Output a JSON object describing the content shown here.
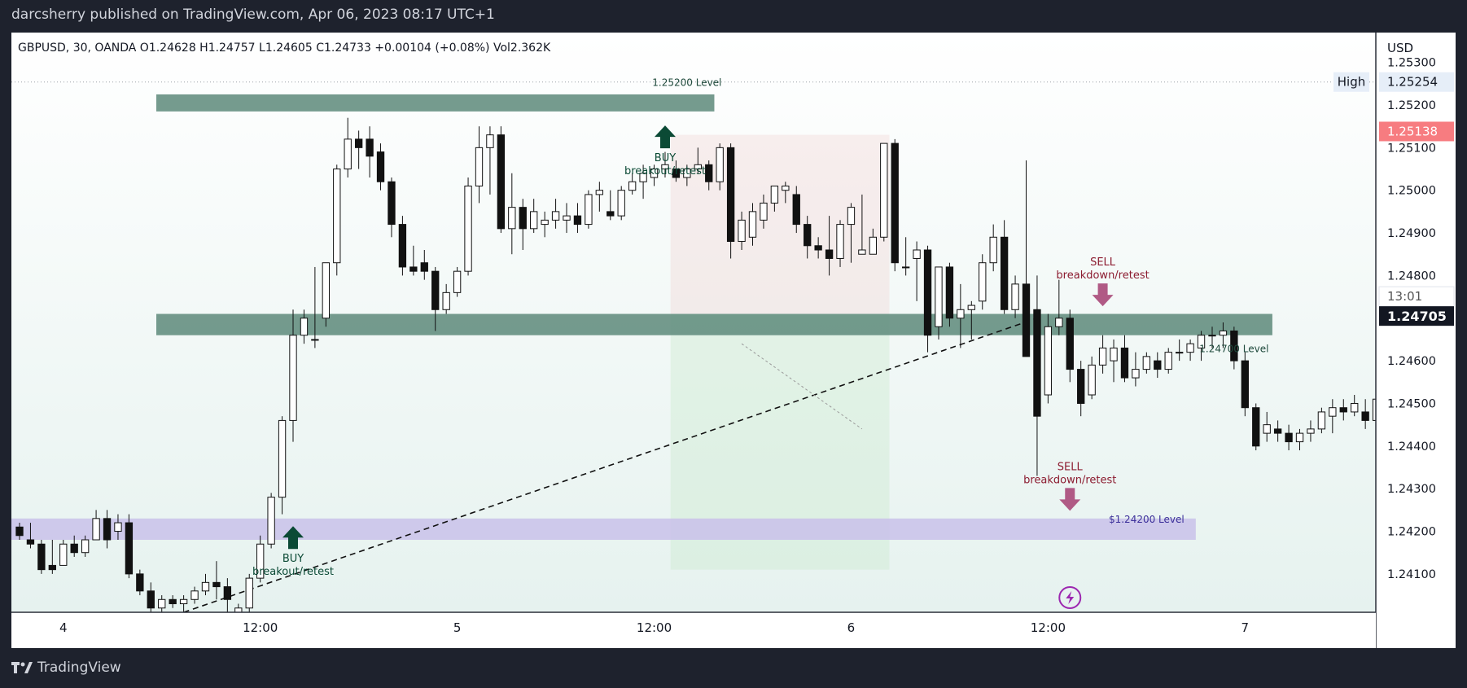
{
  "header": {
    "publish_line": "darcsherry published on TradingView.com, Apr 06, 2023 08:17 UTC+1"
  },
  "legend": {
    "symbol": "GBPUSD, 30, OANDA",
    "open": "O1.24628",
    "high": "H1.24757",
    "low": "L1.24605",
    "close": "C1.24733",
    "change": "+0.00104 (+0.08%)",
    "volume": "Vol2.362K"
  },
  "footer": {
    "brand": "TradingView"
  },
  "chart_data": {
    "type": "candlestick",
    "symbol": "GBPUSD",
    "interval": "30",
    "currency": "USD",
    "ylim": [
      1.2401,
      1.2537
    ],
    "y_ticks": [
      "1.25300",
      "1.25200",
      "1.25100",
      "1.25000",
      "1.24900",
      "1.24800",
      "1.24600",
      "1.24500",
      "1.24400",
      "1.24300",
      "1.24200",
      "1.24100"
    ],
    "x_ticks": [
      {
        "label": "4",
        "slot": 4
      },
      {
        "label": "12:00",
        "slot": 22
      },
      {
        "label": "5",
        "slot": 40
      },
      {
        "label": "12:00",
        "slot": 58
      },
      {
        "label": "6",
        "slot": 76
      },
      {
        "label": "12:00",
        "slot": 94
      },
      {
        "label": "7",
        "slot": 112
      }
    ],
    "total_slots": 129,
    "price_labels": [
      {
        "label": "High",
        "value": "1.25254",
        "price": 1.25254,
        "style": "high"
      },
      {
        "label": "",
        "value": "1.25138",
        "price": 1.25138,
        "style": "red"
      },
      {
        "label": "13:01",
        "value": "1.24705",
        "price": 1.24705,
        "style": "last"
      }
    ],
    "candles": [
      [
        1.2421,
        1.2422,
        1.2419,
        1.2418
      ],
      [
        1.2418,
        1.2422,
        1.2417,
        1.2416
      ],
      [
        1.2417,
        1.2418,
        1.2411,
        1.241
      ],
      [
        1.2412,
        1.2418,
        1.2411,
        1.241
      ],
      [
        1.2412,
        1.2418,
        1.2417,
        1.2416
      ],
      [
        1.2417,
        1.2419,
        1.2415,
        1.2414
      ],
      [
        1.2415,
        1.2419,
        1.2418,
        1.2414
      ],
      [
        1.2418,
        1.2425,
        1.2423,
        1.2418
      ],
      [
        1.2423,
        1.2425,
        1.2418,
        1.2416
      ],
      [
        1.242,
        1.2424,
        1.2422,
        1.2418
      ],
      [
        1.2422,
        1.2424,
        1.241,
        1.2409
      ],
      [
        1.241,
        1.2411,
        1.2406,
        1.2405
      ],
      [
        1.2406,
        1.2408,
        1.2402,
        1.2401
      ],
      [
        1.2402,
        1.2405,
        1.2404,
        1.2401
      ],
      [
        1.2404,
        1.2405,
        1.2403,
        1.2402
      ],
      [
        1.2403,
        1.2405,
        1.2404,
        1.2401
      ],
      [
        1.2404,
        1.2407,
        1.2406,
        1.2403
      ],
      [
        1.2406,
        1.241,
        1.2408,
        1.2405
      ],
      [
        1.2408,
        1.2413,
        1.2407,
        1.2404
      ],
      [
        1.2407,
        1.2409,
        1.2404,
        1.2401
      ],
      [
        1.2401,
        1.2403,
        1.2402,
        1.24
      ],
      [
        1.2402,
        1.241,
        1.2409,
        1.2401
      ],
      [
        1.2409,
        1.2419,
        1.2417,
        1.2408
      ],
      [
        1.2417,
        1.2429,
        1.2428,
        1.2416
      ],
      [
        1.2428,
        1.2447,
        1.2446,
        1.2424
      ],
      [
        1.2446,
        1.2472,
        1.2466,
        1.2441
      ],
      [
        1.2466,
        1.2472,
        1.247,
        1.2464
      ],
      [
        1.2465,
        1.2482,
        1.2465,
        1.2463
      ],
      [
        1.247,
        1.2483,
        1.2483,
        1.2468
      ],
      [
        1.2483,
        1.2506,
        1.2505,
        1.248
      ],
      [
        1.2505,
        1.2517,
        1.2512,
        1.2503
      ],
      [
        1.2512,
        1.2514,
        1.251,
        1.2505
      ],
      [
        1.2512,
        1.2515,
        1.2508,
        1.2503
      ],
      [
        1.2509,
        1.2511,
        1.2502,
        1.25
      ],
      [
        1.2502,
        1.2503,
        1.2492,
        1.2489
      ],
      [
        1.2492,
        1.2494,
        1.2482,
        1.248
      ],
      [
        1.2482,
        1.2487,
        1.2481,
        1.248
      ],
      [
        1.2483,
        1.2486,
        1.2481,
        1.2479
      ],
      [
        1.2481,
        1.2482,
        1.2472,
        1.2467
      ],
      [
        1.2472,
        1.2478,
        1.2476,
        1.2471
      ],
      [
        1.2476,
        1.2482,
        1.2481,
        1.2475
      ],
      [
        1.2481,
        1.2503,
        1.2501,
        1.248
      ],
      [
        1.2501,
        1.2515,
        1.251,
        1.2497
      ],
      [
        1.251,
        1.2515,
        1.2513,
        1.2499
      ],
      [
        1.2513,
        1.2515,
        1.2491,
        1.249
      ],
      [
        1.2491,
        1.2504,
        1.2496,
        1.2485
      ],
      [
        1.2496,
        1.2498,
        1.2491,
        1.2486
      ],
      [
        1.2491,
        1.2498,
        1.2495,
        1.249
      ],
      [
        1.2492,
        1.2495,
        1.2493,
        1.2489
      ],
      [
        1.2493,
        1.2498,
        1.2495,
        1.2491
      ],
      [
        1.2493,
        1.2497,
        1.2494,
        1.249
      ],
      [
        1.2494,
        1.2497,
        1.2492,
        1.249
      ],
      [
        1.2492,
        1.25,
        1.2499,
        1.2491
      ],
      [
        1.2499,
        1.2502,
        1.25,
        1.2495
      ],
      [
        1.2495,
        1.25,
        1.2494,
        1.2493
      ],
      [
        1.2494,
        1.2501,
        1.25,
        1.2493
      ],
      [
        1.25,
        1.2504,
        1.2502,
        1.2499
      ],
      [
        1.2502,
        1.2506,
        1.2504,
        1.2498
      ],
      [
        1.2503,
        1.2506,
        1.2505,
        1.2501
      ],
      [
        1.2505,
        1.2509,
        1.2506,
        1.2503
      ],
      [
        1.2505,
        1.2507,
        1.2503,
        1.2502
      ],
      [
        1.2503,
        1.2506,
        1.2505,
        1.2501
      ],
      [
        1.2505,
        1.251,
        1.2506,
        1.2504
      ],
      [
        1.2506,
        1.2507,
        1.2502,
        1.25
      ],
      [
        1.2502,
        1.2511,
        1.251,
        1.25
      ],
      [
        1.251,
        1.2511,
        1.2488,
        1.2484
      ],
      [
        1.2488,
        1.2495,
        1.2493,
        1.2486
      ],
      [
        1.2489,
        1.2497,
        1.2495,
        1.2487
      ],
      [
        1.2493,
        1.2499,
        1.2497,
        1.2491
      ],
      [
        1.2497,
        1.25,
        1.2501,
        1.2495
      ],
      [
        1.25,
        1.2502,
        1.2501,
        1.2497
      ],
      [
        1.2499,
        1.2501,
        1.2492,
        1.249
      ],
      [
        1.2492,
        1.2494,
        1.2487,
        1.2484
      ],
      [
        1.2487,
        1.2489,
        1.2486,
        1.2484
      ],
      [
        1.2486,
        1.2494,
        1.2484,
        1.248
      ],
      [
        1.2484,
        1.2493,
        1.2492,
        1.2482
      ],
      [
        1.2492,
        1.2497,
        1.2496,
        1.2483
      ],
      [
        1.2485,
        1.2499,
        1.2486,
        1.2485
      ],
      [
        1.2485,
        1.2491,
        1.2489,
        1.2485
      ],
      [
        1.2489,
        1.251,
        1.2511,
        1.2488
      ],
      [
        1.2511,
        1.2512,
        1.2483,
        1.2481
      ],
      [
        1.2482,
        1.2489,
        1.2482,
        1.248
      ],
      [
        1.2484,
        1.2488,
        1.2486,
        1.2474
      ],
      [
        1.2486,
        1.2487,
        1.2466,
        1.2462
      ],
      [
        1.2468,
        1.2481,
        1.2482,
        1.2465
      ],
      [
        1.2482,
        1.2483,
        1.247,
        1.2468
      ],
      [
        1.247,
        1.2478,
        1.2472,
        1.2463
      ],
      [
        1.2472,
        1.2474,
        1.2473,
        1.2465
      ],
      [
        1.2474,
        1.2485,
        1.2483,
        1.2472
      ],
      [
        1.2483,
        1.2492,
        1.2489,
        1.2481
      ],
      [
        1.2489,
        1.2493,
        1.2472,
        1.2471
      ],
      [
        1.2472,
        1.248,
        1.2478,
        1.247
      ],
      [
        1.2478,
        1.2507,
        1.2461,
        1.2461
      ],
      [
        1.2472,
        1.248,
        1.2447,
        1.2433
      ],
      [
        1.2452,
        1.2471,
        1.2468,
        1.245
      ],
      [
        1.2468,
        1.2479,
        1.247,
        1.2466
      ],
      [
        1.247,
        1.2472,
        1.2458,
        1.2455
      ],
      [
        1.2458,
        1.246,
        1.245,
        1.2447
      ],
      [
        1.2452,
        1.2461,
        1.2459,
        1.2451
      ],
      [
        1.2459,
        1.2466,
        1.2463,
        1.2457
      ],
      [
        1.246,
        1.2465,
        1.2463,
        1.2455
      ],
      [
        1.2463,
        1.2466,
        1.2456,
        1.2455
      ],
      [
        1.2456,
        1.2462,
        1.2458,
        1.2454
      ],
      [
        1.2458,
        1.2462,
        1.2461,
        1.2457
      ],
      [
        1.246,
        1.2462,
        1.2458,
        1.2456
      ],
      [
        1.2458,
        1.2463,
        1.2462,
        1.2457
      ],
      [
        1.2462,
        1.2465,
        1.2462,
        1.246
      ],
      [
        1.2462,
        1.2465,
        1.2464,
        1.246
      ],
      [
        1.2463,
        1.2467,
        1.2466,
        1.246
      ],
      [
        1.2466,
        1.2468,
        1.2466,
        1.2463
      ],
      [
        1.2466,
        1.2469,
        1.2467,
        1.2463
      ],
      [
        1.2467,
        1.2468,
        1.246,
        1.2458
      ],
      [
        1.246,
        1.2462,
        1.2449,
        1.2447
      ],
      [
        1.2449,
        1.245,
        1.244,
        1.2439
      ],
      [
        1.2443,
        1.2448,
        1.2445,
        1.2441
      ],
      [
        1.2444,
        1.2446,
        1.2443,
        1.2441
      ],
      [
        1.2443,
        1.2445,
        1.2441,
        1.2439
      ],
      [
        1.2441,
        1.2444,
        1.2443,
        1.2439
      ],
      [
        1.2443,
        1.2446,
        1.2444,
        1.2441
      ],
      [
        1.2444,
        1.2449,
        1.2448,
        1.2443
      ],
      [
        1.2447,
        1.2451,
        1.2449,
        1.2443
      ],
      [
        1.2449,
        1.2451,
        1.2448,
        1.2446
      ],
      [
        1.2448,
        1.2452,
        1.245,
        1.2447
      ],
      [
        1.2448,
        1.2451,
        1.2446,
        1.2444
      ],
      [
        1.2446,
        1.2452,
        1.2451,
        1.2444
      ],
      [
        1.2451,
        1.2463,
        1.2462,
        1.245
      ],
      [
        1.2462,
        1.2476,
        1.2473,
        1.2461
      ]
    ],
    "zones": [
      {
        "name": "resistance-zone-125200",
        "p1": 1.25185,
        "p2": 1.25225,
        "slot_from": 13,
        "slot_to": 63,
        "color": "#5d8a7a"
      },
      {
        "name": "support-zone-124700",
        "p1": 1.2466,
        "p2": 1.2471,
        "slot_from": 13,
        "slot_to": 114,
        "color": "#5d8a7a"
      },
      {
        "name": "support-zone-124200",
        "p1": 1.2418,
        "p2": 1.2423,
        "slot_from": -1,
        "slot_to": 107,
        "color": "#c9c1ea"
      }
    ],
    "position_box": {
      "entry": 1.2471,
      "target": 1.2411,
      "stop": 1.2513,
      "slot_from": 60,
      "slot_to": 79
    },
    "trend_line": {
      "from": [
        15,
        1.2401
      ],
      "to": [
        93,
        1.247
      ]
    },
    "dashed_projection": {
      "from": [
        66,
        1.2464
      ],
      "to": [
        77,
        1.2444
      ]
    },
    "annotations": [
      {
        "name": "buy-label-top",
        "lines": [
          "BUY",
          "breakout/retest"
        ],
        "slot": 59,
        "price": 1.2511,
        "arrow": "up",
        "color": "#0b4a35"
      },
      {
        "name": "buy-label-bottom",
        "lines": [
          "BUY",
          "breakout/retest"
        ],
        "slot": 25,
        "price": 1.2417,
        "arrow": "up",
        "color": "#0b4a35"
      },
      {
        "name": "sell-label-top",
        "lines": [
          "SELL",
          "breakdown/retest"
        ],
        "slot": 99,
        "price": 1.2477,
        "arrow": "down",
        "color": "#8c1c30"
      },
      {
        "name": "sell-label-bottom",
        "lines": [
          "SELL",
          "breakdown/retest"
        ],
        "slot": 96,
        "price": 1.2429,
        "arrow": "down",
        "color": "#8c1c30"
      }
    ],
    "level_labels": [
      {
        "name": "level-125200",
        "text": "1.25200 Level",
        "slot": 61,
        "price": 1.25254,
        "color": "#1f4a3c"
      },
      {
        "name": "level-124700",
        "text": "1.24700 Level",
        "slot": 111,
        "price": 1.2463,
        "color": "#1f4a3c"
      },
      {
        "name": "level-124200",
        "text": "$1.24200 Level",
        "slot": 103,
        "price": 1.2423,
        "color": "#3b2f9a"
      }
    ]
  }
}
